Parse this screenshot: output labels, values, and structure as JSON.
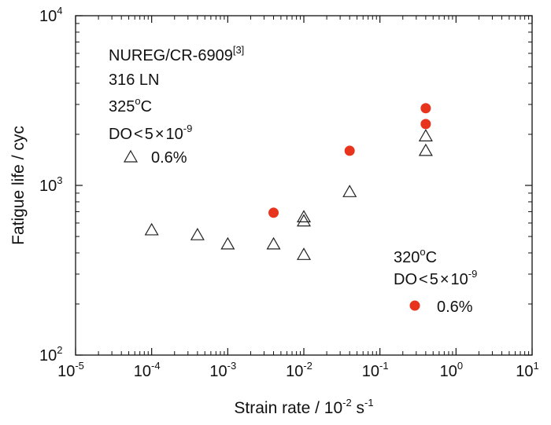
{
  "chart_data": {
    "type": "scatter",
    "xscale": "log",
    "yscale": "log",
    "xlim": [
      1e-05,
      10
    ],
    "ylim": [
      100,
      10000
    ],
    "x_tick_labels": [
      {
        "base": "10",
        "exp": "-5"
      },
      {
        "base": "10",
        "exp": "-4"
      },
      {
        "base": "10",
        "exp": "-3"
      },
      {
        "base": "10",
        "exp": "-2"
      },
      {
        "base": "10",
        "exp": "-1"
      },
      {
        "base": "10",
        "exp": "0"
      },
      {
        "base": "10",
        "exp": "1"
      }
    ],
    "y_tick_labels": [
      {
        "base": "10",
        "exp": "2"
      },
      {
        "base": "10",
        "exp": "3"
      },
      {
        "base": "10",
        "exp": "4"
      }
    ],
    "xlabel": {
      "main": "Strain rate / 10",
      "exp": "-2",
      "unit": " s",
      "unit_exp": "-1"
    },
    "ylabel": "Fatigue life / cyc",
    "series": [
      {
        "name": "NUREG/CR-6909 316 LN 325°C",
        "marker": "open-triangle",
        "color": "#222222",
        "points": [
          {
            "x": 0.0001,
            "y": 545
          },
          {
            "x": 0.0004,
            "y": 510
          },
          {
            "x": 0.001,
            "y": 450
          },
          {
            "x": 0.004,
            "y": 450
          },
          {
            "x": 0.01,
            "y": 390
          },
          {
            "x": 0.01,
            "y": 615
          },
          {
            "x": 0.01,
            "y": 650
          },
          {
            "x": 0.04,
            "y": 915
          },
          {
            "x": 0.4,
            "y": 1600
          },
          {
            "x": 0.4,
            "y": 1950
          }
        ]
      },
      {
        "name": "320°C",
        "marker": "filled-circle",
        "color": "#e8341c",
        "points": [
          {
            "x": 0.004,
            "y": 690
          },
          {
            "x": 0.04,
            "y": 1600
          },
          {
            "x": 0.4,
            "y": 2300
          },
          {
            "x": 0.4,
            "y": 2850
          }
        ]
      }
    ],
    "annotations": {
      "group1": {
        "source": "NUREG/CR-6909",
        "ref": "[3]",
        "material": "316 LN",
        "temp_value": "325",
        "temp_sup": "o",
        "temp_unit": "C",
        "do_label": "DO",
        "do_op": "<",
        "do_value": "5",
        "do_times": "×",
        "do_base": "10",
        "do_exp": "-9",
        "legend_text": "0.6%"
      },
      "group2": {
        "temp_value": "320",
        "temp_sup": "o",
        "temp_unit": "C",
        "do_label": "DO",
        "do_op": "<",
        "do_value": "5",
        "do_times": "×",
        "do_base": "10",
        "do_exp": "-9",
        "legend_text": "0.6%"
      }
    }
  }
}
